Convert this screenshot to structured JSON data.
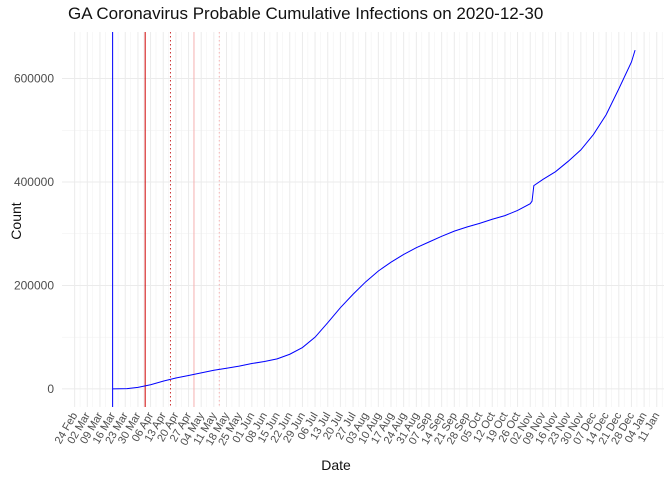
{
  "chart_data": {
    "type": "line",
    "title": "GA Coronavirus Probable Cumulative Infections on 2020-12-30",
    "xlabel": "Date",
    "ylabel": "Count",
    "ylim": [
      -35000,
      690000
    ],
    "xlim": [
      "2020-02-17",
      "2021-01-15"
    ],
    "y_ticks": [
      0,
      200000,
      400000,
      600000
    ],
    "y_tick_labels": [
      "0",
      "200000",
      "400000",
      "600000"
    ],
    "x_tick_dates": [
      "2020-02-24",
      "2020-03-02",
      "2020-03-09",
      "2020-03-16",
      "2020-03-23",
      "2020-03-30",
      "2020-04-06",
      "2020-04-13",
      "2020-04-20",
      "2020-04-27",
      "2020-05-04",
      "2020-05-11",
      "2020-05-18",
      "2020-05-25",
      "2020-06-01",
      "2020-06-08",
      "2020-06-15",
      "2020-06-22",
      "2020-06-29",
      "2020-07-06",
      "2020-07-13",
      "2020-07-20",
      "2020-07-27",
      "2020-08-03",
      "2020-08-10",
      "2020-08-17",
      "2020-08-24",
      "2020-08-31",
      "2020-09-07",
      "2020-09-14",
      "2020-09-21",
      "2020-09-28",
      "2020-10-05",
      "2020-10-12",
      "2020-10-19",
      "2020-10-26",
      "2020-11-02",
      "2020-11-09",
      "2020-11-16",
      "2020-11-23",
      "2020-11-30",
      "2020-12-07",
      "2020-12-14",
      "2020-12-21",
      "2020-12-28",
      "2021-01-04",
      "2021-01-11"
    ],
    "x_tick_labels": [
      "24 Feb",
      "02 Mar",
      "09 Mar",
      "16 Mar",
      "23 Mar",
      "30 Mar",
      "06 Apr",
      "13 Apr",
      "20 Apr",
      "27 Apr",
      "04 May",
      "11 May",
      "18 May",
      "25 May",
      "01 Jun",
      "08 Jun",
      "15 Jun",
      "22 Jun",
      "29 Jun",
      "06 Jul",
      "13 Jul",
      "20 Jul",
      "27 Jul",
      "03 Aug",
      "10 Aug",
      "17 Aug",
      "24 Aug",
      "31 Aug",
      "07 Sep",
      "14 Sep",
      "21 Sep",
      "28 Sep",
      "05 Oct",
      "12 Oct",
      "19 Oct",
      "26 Oct",
      "02 Nov",
      "09 Nov",
      "16 Nov",
      "23 Nov",
      "30 Nov",
      "07 Dec",
      "14 Dec",
      "21 Dec",
      "28 Dec",
      "04 Jan",
      "11 Jan"
    ],
    "grid": true,
    "series": [
      {
        "name": "Probable cumulative infections",
        "color": "#0000ff",
        "points": [
          [
            "2020-03-16",
            0
          ],
          [
            "2020-03-24",
            500
          ],
          [
            "2020-03-30",
            3000
          ],
          [
            "2020-04-06",
            8000
          ],
          [
            "2020-04-13",
            15000
          ],
          [
            "2020-04-20",
            21000
          ],
          [
            "2020-04-27",
            26000
          ],
          [
            "2020-05-04",
            31000
          ],
          [
            "2020-05-11",
            36000
          ],
          [
            "2020-05-18",
            40000
          ],
          [
            "2020-05-25",
            44000
          ],
          [
            "2020-06-01",
            49000
          ],
          [
            "2020-06-08",
            53000
          ],
          [
            "2020-06-15",
            58000
          ],
          [
            "2020-06-22",
            67000
          ],
          [
            "2020-06-29",
            80000
          ],
          [
            "2020-07-06",
            100000
          ],
          [
            "2020-07-13",
            128000
          ],
          [
            "2020-07-20",
            157000
          ],
          [
            "2020-07-27",
            183000
          ],
          [
            "2020-08-03",
            207000
          ],
          [
            "2020-08-10",
            228000
          ],
          [
            "2020-08-17",
            245000
          ],
          [
            "2020-08-24",
            260000
          ],
          [
            "2020-08-31",
            273000
          ],
          [
            "2020-09-07",
            284000
          ],
          [
            "2020-09-14",
            295000
          ],
          [
            "2020-09-21",
            305000
          ],
          [
            "2020-09-28",
            313000
          ],
          [
            "2020-10-05",
            320000
          ],
          [
            "2020-10-12",
            328000
          ],
          [
            "2020-10-19",
            335000
          ],
          [
            "2020-10-26",
            345000
          ],
          [
            "2020-11-02",
            358000
          ],
          [
            "2020-11-03",
            363000
          ],
          [
            "2020-11-04",
            393000
          ],
          [
            "2020-11-09",
            405000
          ],
          [
            "2020-11-16",
            420000
          ],
          [
            "2020-11-23",
            440000
          ],
          [
            "2020-11-30",
            462000
          ],
          [
            "2020-12-07",
            492000
          ],
          [
            "2020-12-14",
            530000
          ],
          [
            "2020-12-21",
            580000
          ],
          [
            "2020-12-28",
            632000
          ],
          [
            "2020-12-30",
            655000
          ]
        ]
      }
    ],
    "vertical_lines": [
      {
        "name": "first-case-line",
        "date": "2020-03-16",
        "color": "#0000ff",
        "style": "solid",
        "from_bottom": true
      },
      {
        "name": "event-line-1",
        "date": "2020-04-03",
        "color": "#cc0000",
        "style": "solid"
      },
      {
        "name": "event-line-2",
        "date": "2020-04-17",
        "color": "#cc3333",
        "style": "dotted"
      },
      {
        "name": "event-line-3",
        "date": "2020-04-30",
        "color": "#f4b0b0",
        "style": "solid"
      },
      {
        "name": "event-line-4",
        "date": "2020-05-14",
        "color": "#f4b0b0",
        "style": "dotted"
      }
    ]
  }
}
